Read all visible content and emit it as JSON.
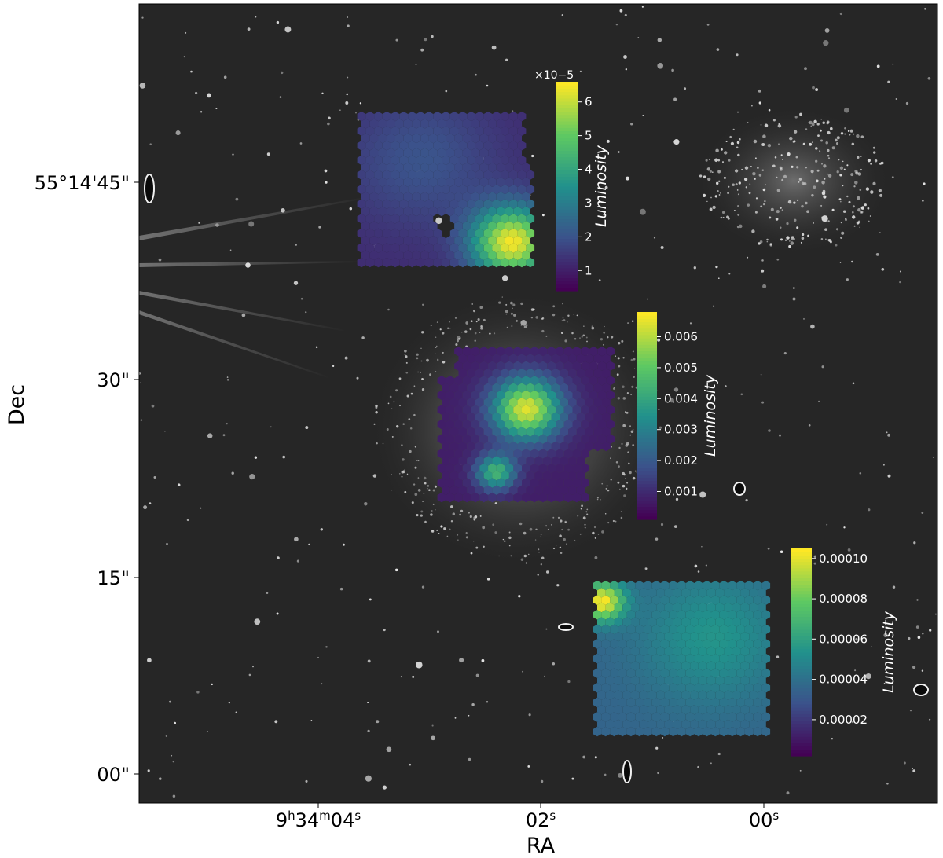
{
  "chart_data": {
    "type": "heatmap",
    "background": "grayscale sky image",
    "xlabel": "RA",
    "ylabel": "Dec",
    "x_ticks": [
      {
        "label": "9h34m04s",
        "parts": [
          {
            "t": "9"
          },
          {
            "t": "h",
            "sup": true
          },
          {
            "t": "34"
          },
          {
            "t": "m",
            "sup": true
          },
          {
            "t": "04"
          },
          {
            "t": "s",
            "sup": true
          }
        ]
      },
      {
        "label": "02s",
        "parts": [
          {
            "t": "02"
          },
          {
            "t": "s",
            "sup": true
          }
        ]
      },
      {
        "label": "00s",
        "parts": [
          {
            "t": "00"
          },
          {
            "t": "s",
            "sup": true
          }
        ]
      }
    ],
    "y_ticks": [
      {
        "label": "55°14'45\""
      },
      {
        "label": "30\""
      },
      {
        "label": "15\""
      },
      {
        "label": "00\""
      }
    ],
    "colormap": [
      "#440154",
      "#3b528b",
      "#21918c",
      "#5ec962",
      "#fde725"
    ],
    "panels": [
      {
        "name": "top",
        "colorbar_label": "Luminosity",
        "colorbar_multiplier": "×10−5",
        "colorbar_ticks": [
          "1",
          "2",
          "3",
          "4",
          "5",
          "6"
        ],
        "range": [
          0.4,
          6.6
        ],
        "peaks": [
          {
            "u": 0.87,
            "v": 0.83,
            "value": 6.5,
            "spread": 0.16
          },
          {
            "u": 0.35,
            "v": 0.3,
            "value": 2.0,
            "spread": 0.3
          }
        ],
        "base": 1.2
      },
      {
        "name": "middle",
        "colorbar_label": "Luminosity",
        "colorbar_multiplier": "",
        "colorbar_ticks": [
          "0.001",
          "0.002",
          "0.003",
          "0.004",
          "0.005",
          "0.006"
        ],
        "range": [
          0.0001,
          0.0068
        ],
        "peaks": [
          {
            "u": 0.5,
            "v": 0.39,
            "value": 0.0065,
            "spread": 0.14
          },
          {
            "u": 0.32,
            "v": 0.8,
            "value": 0.0045,
            "spread": 0.08
          }
        ],
        "base": 0.0007
      },
      {
        "name": "bottom",
        "colorbar_label": "Luminosity",
        "colorbar_multiplier": "",
        "colorbar_ticks": [
          "0.00002",
          "0.00004",
          "0.00006",
          "0.00008",
          "0.00010"
        ],
        "range": [
          2e-06,
          0.000105
        ],
        "peaks": [
          {
            "u": 0.03,
            "v": 0.12,
            "value": 0.000104,
            "spread": 0.09
          },
          {
            "u": 0.68,
            "v": 0.35,
            "value": 5.5e-05,
            "spread": 0.3
          }
        ],
        "base": 3.5e-05
      }
    ]
  }
}
